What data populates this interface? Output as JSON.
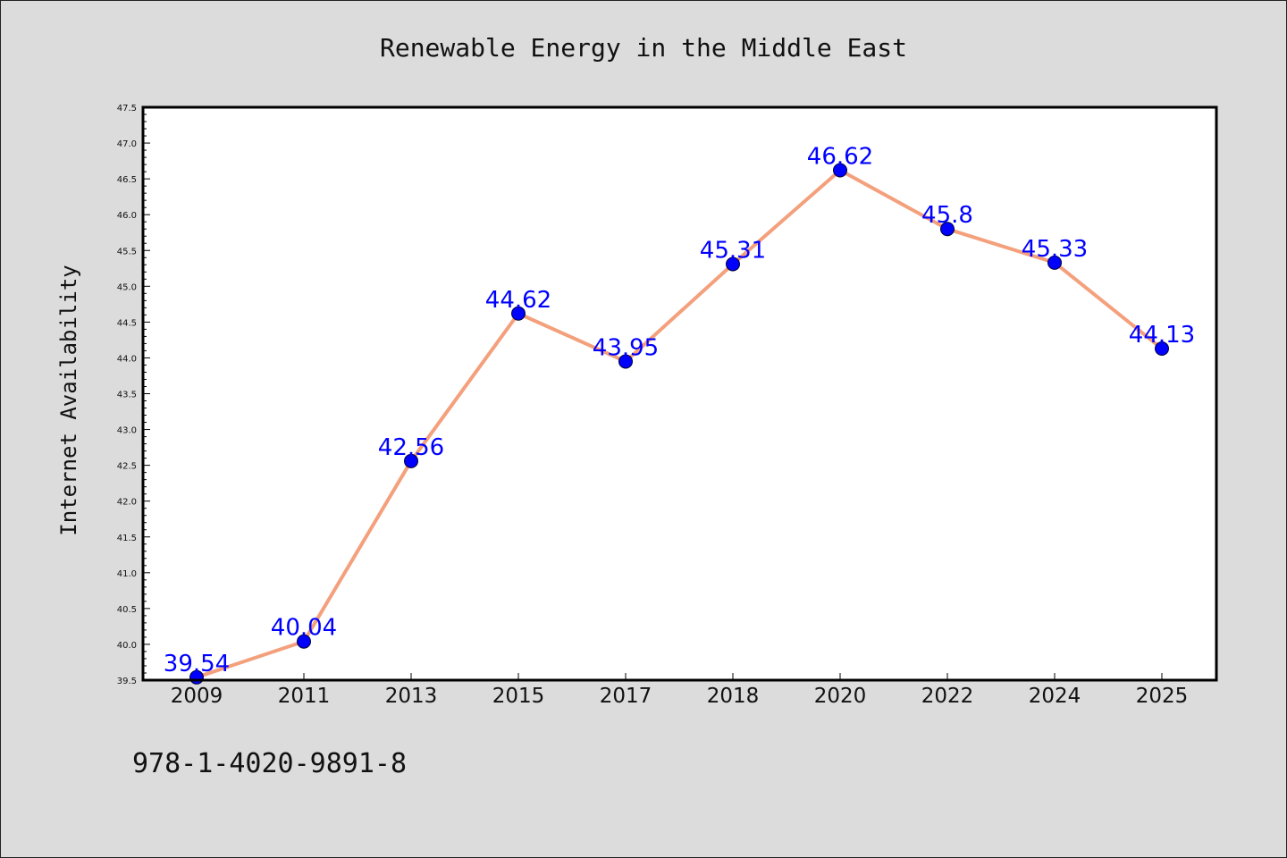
{
  "chart_data": {
    "type": "line",
    "title": "Renewable Energy in the Middle East",
    "xlabel": "",
    "ylabel": "Internet Availability",
    "categories": [
      "2009",
      "2011",
      "2013",
      "2015",
      "2017",
      "2018",
      "2020",
      "2022",
      "2024",
      "2025"
    ],
    "series": [
      {
        "values": [
          39.54,
          40.04,
          42.56,
          44.62,
          43.95,
          45.31,
          46.62,
          45.8,
          45.33,
          44.13
        ],
        "data_labels": [
          "39.54",
          "40.04",
          "42.56",
          "44.62",
          "43.95",
          "45.31",
          "46.62",
          "45.8",
          "45.33",
          "44.13"
        ],
        "line_color": "#f4a07c",
        "marker_color": "#0000ff"
      }
    ],
    "ylim": [
      39.5,
      47.5
    ],
    "yticks": [
      "39.5",
      "40.0",
      "40.5",
      "41.0",
      "41.5",
      "42.0",
      "42.5",
      "43.0",
      "43.5",
      "44.0",
      "44.5",
      "45.0",
      "45.5",
      "46.0",
      "46.5",
      "47.0",
      "47.5"
    ],
    "grid": false,
    "legend": "none",
    "annotation": "978-1-4020-9891-8"
  },
  "colors": {
    "background": "#dcdcdc",
    "plot_background": "#ffffff",
    "line": "#f4a07c",
    "marker": "#0000ff",
    "data_label": "#0000ff"
  }
}
